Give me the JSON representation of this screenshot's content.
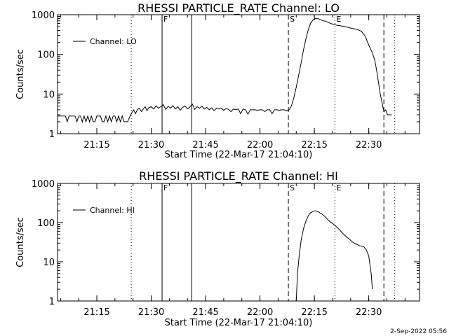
{
  "footer": {
    "date_stamp": "2-Sep-2022 05:56"
  },
  "chart_data": [
    {
      "type": "line",
      "title": "RHESSI PARTICLE_RATE Channel: LO",
      "xlabel": "Start Time (22-Mar-17 21:04:10)",
      "ylabel": "Counts/sec",
      "yscale": "log",
      "ylim": [
        1,
        1000
      ],
      "xlim": [
        "21:04:10",
        "22:44:00"
      ],
      "xticks": [
        "21:15",
        "21:30",
        "21:45",
        "22:00",
        "22:15",
        "22:30"
      ],
      "yticks": [
        "1",
        "10",
        "100",
        "1000"
      ],
      "legend": {
        "label": "Channel: LO",
        "position": "top-left"
      },
      "grid": false,
      "vlines": [
        {
          "time": "21:24:30",
          "style": "dotted",
          "label": ""
        },
        {
          "time": "21:33:00",
          "style": "solid",
          "label": "F"
        },
        {
          "time": "21:41:10",
          "style": "solid",
          "label": ""
        },
        {
          "time": "22:07:50",
          "style": "dashed",
          "label": "S"
        },
        {
          "time": "22:20:40",
          "style": "dotted",
          "label": "E"
        },
        {
          "time": "22:34:10",
          "style": "dashed",
          "label": ""
        },
        {
          "time": "22:37:10",
          "style": "dotted",
          "label": ""
        }
      ],
      "series": [
        {
          "name": "Channel: LO",
          "x": [
            "21:04:10",
            "21:06:20",
            "21:06:50",
            "21:07:20",
            "21:08:00",
            "21:08:30",
            "21:09:00",
            "21:09:30",
            "21:10:00",
            "21:10:30",
            "21:11:00",
            "21:11:30",
            "21:12:00",
            "21:12:30",
            "21:13:00",
            "21:13:30",
            "21:14:00",
            "21:14:30",
            "21:15:00",
            "21:15:30",
            "21:16:00",
            "21:16:30",
            "21:17:00",
            "21:17:30",
            "21:18:00",
            "21:18:30",
            "21:19:00",
            "21:19:30",
            "21:20:00",
            "21:20:30",
            "21:21:00",
            "21:21:30",
            "21:22:00",
            "21:22:30",
            "21:23:00",
            "21:23:30",
            "21:24:10",
            "21:24:40",
            "21:25:10",
            "21:25:40",
            "21:26:10",
            "21:26:40",
            "21:27:20",
            "21:27:50",
            "21:28:20",
            "21:28:50",
            "21:29:20",
            "21:30:00",
            "21:30:40",
            "21:31:20",
            "21:32:00",
            "21:32:40",
            "21:33:20",
            "21:34:00",
            "21:34:40",
            "21:35:20",
            "21:36:00",
            "21:36:40",
            "21:37:20",
            "21:38:00",
            "21:38:40",
            "21:39:20",
            "21:40:00",
            "21:40:40",
            "21:41:20",
            "21:42:00",
            "21:42:40",
            "21:43:20",
            "21:44:00",
            "21:44:40",
            "21:45:20",
            "21:46:00",
            "21:46:40",
            "21:47:20",
            "21:48:00",
            "21:48:40",
            "21:49:20",
            "21:50:00",
            "21:50:40",
            "21:51:20",
            "21:52:00",
            "21:52:40",
            "21:53:20",
            "21:54:00",
            "21:54:40",
            "21:55:20",
            "21:56:00",
            "21:56:40",
            "21:57:20",
            "21:58:00",
            "21:58:40",
            "21:59:20",
            "22:00:00",
            "22:00:40",
            "22:01:20",
            "22:02:00",
            "22:02:40",
            "22:03:20",
            "22:04:00",
            "22:04:40",
            "22:05:20",
            "22:06:00",
            "22:06:40",
            "22:07:20",
            "22:08:00",
            "22:08:40",
            "22:09:20",
            "22:10:00",
            "22:10:40",
            "22:11:20",
            "22:12:00",
            "22:12:40",
            "22:13:20",
            "22:14:00",
            "22:14:40",
            "22:15:20",
            "22:16:00",
            "22:16:40",
            "22:17:20",
            "22:18:00",
            "22:18:40",
            "22:19:20",
            "22:20:00",
            "22:20:40",
            "22:21:20",
            "22:22:00",
            "22:23:00",
            "22:24:00",
            "22:25:00",
            "22:26:00",
            "22:27:00",
            "22:28:00",
            "22:29:00",
            "22:30:00",
            "22:31:00",
            "22:31:40",
            "22:32:10",
            "22:32:40",
            "22:33:10",
            "22:33:40",
            "22:34:10",
            "22:34:40",
            "22:35:10",
            "22:35:40",
            "22:36:20"
          ],
          "values": [
            2.8,
            2.8,
            2.0,
            2.8,
            2.8,
            2.8,
            2.8,
            2.0,
            2.8,
            2.8,
            2.0,
            2.8,
            2.0,
            2.8,
            2.0,
            2.8,
            2.0,
            2.0,
            2.8,
            2.8,
            2.8,
            2.0,
            2.0,
            2.8,
            2.0,
            2.8,
            2.0,
            2.8,
            2.8,
            2.0,
            2.8,
            2.0,
            2.8,
            2.0,
            2.0,
            2.0,
            2.8,
            3.4,
            4.0,
            3.2,
            4.0,
            4.4,
            3.6,
            4.2,
            4.8,
            3.8,
            4.5,
            4.8,
            4.2,
            5.0,
            4.4,
            4.8,
            5.4,
            4.1,
            4.9,
            4.4,
            5.1,
            4.2,
            4.8,
            3.9,
            4.6,
            5.0,
            4.2,
            4.7,
            5.6,
            4.1,
            4.8,
            4.4,
            4.9,
            4.2,
            4.6,
            4.0,
            4.5,
            3.8,
            4.4,
            4.2,
            4.4,
            3.9,
            4.3,
            4.1,
            3.6,
            4.2,
            4.0,
            4.2,
            3.2,
            4.2,
            4.0,
            3.1,
            4.0,
            4.0,
            4.0,
            3.9,
            4.0,
            4.0,
            3.6,
            4.0,
            4.0,
            3.2,
            4.0,
            4.0,
            3.9,
            4.0,
            4.0,
            3.8,
            4.0,
            5.0,
            8.0,
            15,
            30,
            60,
            130,
            250,
            420,
            620,
            750,
            800,
            790,
            760,
            700,
            690,
            650,
            610,
            580,
            560,
            540,
            530,
            510,
            490,
            460,
            440,
            420,
            380,
            290,
            170,
            110,
            70,
            40,
            20,
            10,
            6.0,
            3.6,
            4.0,
            3.0,
            3.0,
            3.0
          ]
        }
      ]
    },
    {
      "type": "line",
      "title": "RHESSI PARTICLE_RATE Channel: HI",
      "xlabel": "Start Time (22-Mar-17 21:04:10)",
      "ylabel": "Counts/sec",
      "yscale": "log",
      "ylim": [
        1,
        1000
      ],
      "xlim": [
        "21:04:10",
        "22:44:00"
      ],
      "xticks": [
        "21:15",
        "21:30",
        "21:45",
        "22:00",
        "22:15",
        "22:30"
      ],
      "yticks": [
        "1",
        "10",
        "100",
        "1000"
      ],
      "legend": {
        "label": "Channel: HI",
        "position": "top-left"
      },
      "grid": false,
      "vlines": [
        {
          "time": "21:24:30",
          "style": "dotted",
          "label": ""
        },
        {
          "time": "21:33:00",
          "style": "solid",
          "label": "F"
        },
        {
          "time": "21:41:10",
          "style": "solid",
          "label": ""
        },
        {
          "time": "22:07:50",
          "style": "dashed",
          "label": "S"
        },
        {
          "time": "22:20:40",
          "style": "dotted",
          "label": "E"
        },
        {
          "time": "22:34:10",
          "style": "dashed",
          "label": ""
        },
        {
          "time": "22:37:10",
          "style": "dotted",
          "label": ""
        }
      ],
      "series": [
        {
          "name": "Channel: HI",
          "x": [
            "22:10:00",
            "22:10:20",
            "22:10:50",
            "22:11:20",
            "22:12:00",
            "22:12:40",
            "22:13:20",
            "22:14:00",
            "22:14:40",
            "22:15:20",
            "22:16:00",
            "22:16:40",
            "22:17:20",
            "22:18:00",
            "22:18:40",
            "22:19:20",
            "22:20:00",
            "22:20:40",
            "22:21:20",
            "22:22:00",
            "22:22:40",
            "22:23:20",
            "22:24:00",
            "22:24:40",
            "22:25:20",
            "22:26:00",
            "22:26:40",
            "22:27:20",
            "22:28:00",
            "22:28:40",
            "22:29:20",
            "22:30:00",
            "22:30:40",
            "22:31:00"
          ],
          "values": [
            1.0,
            5,
            15,
            35,
            70,
            110,
            150,
            180,
            195,
            200,
            190,
            175,
            160,
            140,
            120,
            105,
            95,
            85,
            75,
            65,
            55,
            48,
            42,
            38,
            33,
            30,
            28,
            26,
            25,
            24,
            20,
            14,
            5,
            2
          ]
        }
      ]
    }
  ]
}
